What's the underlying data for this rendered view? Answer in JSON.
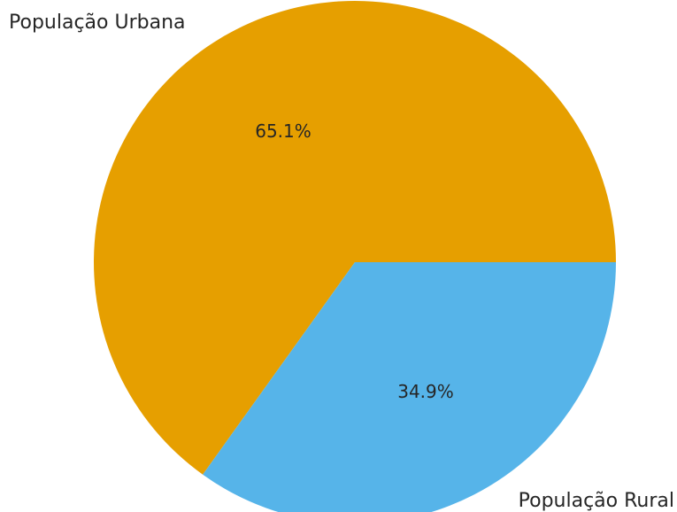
{
  "chart_data": {
    "type": "pie",
    "categories": [
      "População Urbana",
      "População Rural"
    ],
    "values": [
      65.1,
      34.9
    ],
    "labels": [
      "65.1%",
      "34.9%"
    ],
    "colors": [
      "#E69F00",
      "#56B4E9"
    ],
    "title": "",
    "legend": "none"
  }
}
